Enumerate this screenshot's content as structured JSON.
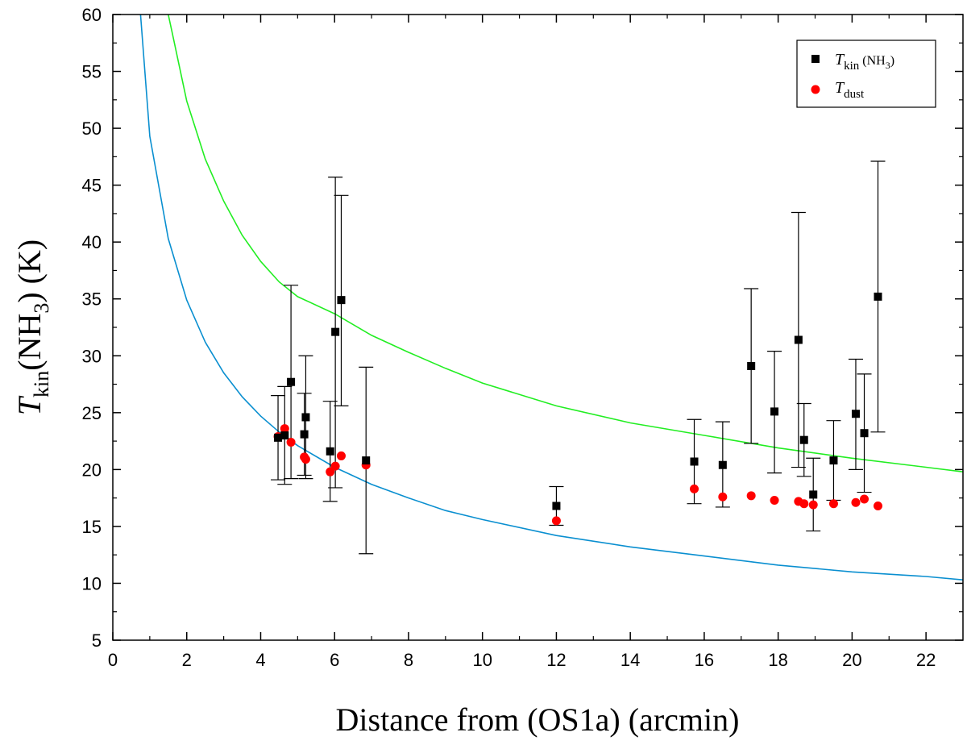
{
  "chart_data": {
    "type": "scatter",
    "xlabel": "Distance from (OS1a)  (arcmin)",
    "ylabel": {
      "main": "T",
      "sub": "kin",
      "paren_open": "(NH",
      "paren_sub": "3",
      "paren_close": ") (K)"
    },
    "xlim": [
      0,
      23
    ],
    "ylim": [
      5,
      60
    ],
    "x_ticks": [
      "0",
      "2",
      "4",
      "6",
      "8",
      "10",
      "12",
      "14",
      "16",
      "18",
      "20",
      "22"
    ],
    "y_ticks": [
      "5",
      "10",
      "15",
      "20",
      "25",
      "30",
      "35",
      "40",
      "45",
      "50",
      "55",
      "60"
    ],
    "grid": false,
    "legend_position": "top-right",
    "legend": [
      {
        "symbol": "square",
        "color": "#000000",
        "main": "T",
        "sub": "kin",
        "suffix": "(NH",
        "suffix_sub": "3",
        "suffix_close": ")"
      },
      {
        "symbol": "circle",
        "color": "#ff0000",
        "main": "T",
        "sub": "dust",
        "suffix": "",
        "suffix_sub": "",
        "suffix_close": ""
      }
    ],
    "series": [
      {
        "name": "Tkin(NH3)",
        "color": "#000000",
        "marker": "square",
        "points": [
          {
            "x": 4.47,
            "y": 22.8,
            "ylo": 19.1,
            "yhi": 26.5
          },
          {
            "x": 4.65,
            "y": 23.0,
            "ylo": 18.7,
            "yhi": 27.3
          },
          {
            "x": 4.82,
            "y": 27.7,
            "ylo": 19.2,
            "yhi": 36.2
          },
          {
            "x": 5.18,
            "y": 23.1,
            "ylo": 19.5,
            "yhi": 26.7
          },
          {
            "x": 5.22,
            "y": 24.6,
            "ylo": 19.2,
            "yhi": 30.0
          },
          {
            "x": 5.88,
            "y": 21.6,
            "ylo": 17.2,
            "yhi": 26.0
          },
          {
            "x": 6.02,
            "y": 32.1,
            "ylo": 18.4,
            "yhi": 45.7
          },
          {
            "x": 6.18,
            "y": 34.9,
            "ylo": 25.6,
            "yhi": 44.1
          },
          {
            "x": 6.85,
            "y": 20.8,
            "ylo": 12.6,
            "yhi": 29.0
          },
          {
            "x": 12.0,
            "y": 16.8,
            "ylo": 15.1,
            "yhi": 18.5
          },
          {
            "x": 15.73,
            "y": 20.7,
            "ylo": 17.0,
            "yhi": 24.4
          },
          {
            "x": 16.5,
            "y": 20.4,
            "ylo": 16.7,
            "yhi": 24.2
          },
          {
            "x": 17.27,
            "y": 29.1,
            "ylo": 22.3,
            "yhi": 35.9
          },
          {
            "x": 17.9,
            "y": 25.1,
            "ylo": 19.7,
            "yhi": 30.4
          },
          {
            "x": 18.55,
            "y": 31.4,
            "ylo": 20.2,
            "yhi": 42.6
          },
          {
            "x": 18.7,
            "y": 22.6,
            "ylo": 19.4,
            "yhi": 25.8
          },
          {
            "x": 18.95,
            "y": 17.8,
            "ylo": 14.6,
            "yhi": 21.0
          },
          {
            "x": 19.5,
            "y": 20.8,
            "ylo": 17.3,
            "yhi": 24.3
          },
          {
            "x": 20.1,
            "y": 24.9,
            "ylo": 20.0,
            "yhi": 29.7
          },
          {
            "x": 20.33,
            "y": 23.2,
            "ylo": 18.0,
            "yhi": 28.4
          },
          {
            "x": 20.7,
            "y": 35.2,
            "ylo": 23.3,
            "yhi": 47.1
          }
        ]
      },
      {
        "name": "Tdust",
        "color": "#ff0000",
        "marker": "circle",
        "points": [
          {
            "x": 4.47,
            "y": 22.9
          },
          {
            "x": 4.65,
            "y": 23.6
          },
          {
            "x": 4.82,
            "y": 22.4
          },
          {
            "x": 5.18,
            "y": 21.1
          },
          {
            "x": 5.22,
            "y": 20.9
          },
          {
            "x": 5.88,
            "y": 19.8
          },
          {
            "x": 6.02,
            "y": 20.3
          },
          {
            "x": 6.18,
            "y": 21.2
          },
          {
            "x": 6.85,
            "y": 20.4
          },
          {
            "x": 12.0,
            "y": 15.5
          },
          {
            "x": 15.73,
            "y": 18.3
          },
          {
            "x": 16.5,
            "y": 17.6
          },
          {
            "x": 17.27,
            "y": 17.7
          },
          {
            "x": 17.9,
            "y": 17.3
          },
          {
            "x": 18.55,
            "y": 17.2
          },
          {
            "x": 18.7,
            "y": 17.0
          },
          {
            "x": 18.95,
            "y": 16.9
          },
          {
            "x": 19.5,
            "y": 17.0
          },
          {
            "x": 20.1,
            "y": 17.1
          },
          {
            "x": 20.33,
            "y": 17.4
          },
          {
            "x": 20.7,
            "y": 16.8
          }
        ]
      }
    ],
    "curves": [
      {
        "color": "#0a8fd0",
        "x": [
          0.75,
          1.0,
          1.5,
          2.0,
          2.5,
          3.0,
          3.5,
          4.0,
          4.5,
          5.0,
          6.0,
          7.0,
          8.0,
          9.0,
          10.0,
          12.0,
          14.0,
          16.0,
          18.0,
          20.0,
          22.0,
          23.0
        ],
        "y": [
          60.0,
          49.3,
          40.3,
          34.9,
          31.2,
          28.5,
          26.4,
          24.7,
          23.3,
          22.1,
          20.2,
          18.7,
          17.5,
          16.4,
          15.6,
          14.2,
          13.2,
          12.4,
          11.6,
          11.0,
          10.6,
          10.3
        ]
      },
      {
        "color": "#22ee22",
        "x": [
          1.5,
          1.6,
          2.0,
          2.5,
          3.0,
          3.5,
          4.0,
          4.5,
          5.0,
          6.0,
          7.0,
          8.0,
          9.0,
          10.0,
          12.0,
          14.0,
          16.0,
          18.0,
          20.0,
          22.0,
          23.0
        ],
        "y": [
          60.0,
          58.5,
          52.4,
          47.3,
          43.6,
          40.6,
          38.3,
          36.5,
          35.2,
          33.7,
          31.8,
          30.3,
          28.9,
          27.6,
          25.6,
          24.1,
          23.0,
          21.9,
          21.0,
          20.2,
          19.8
        ]
      }
    ]
  }
}
